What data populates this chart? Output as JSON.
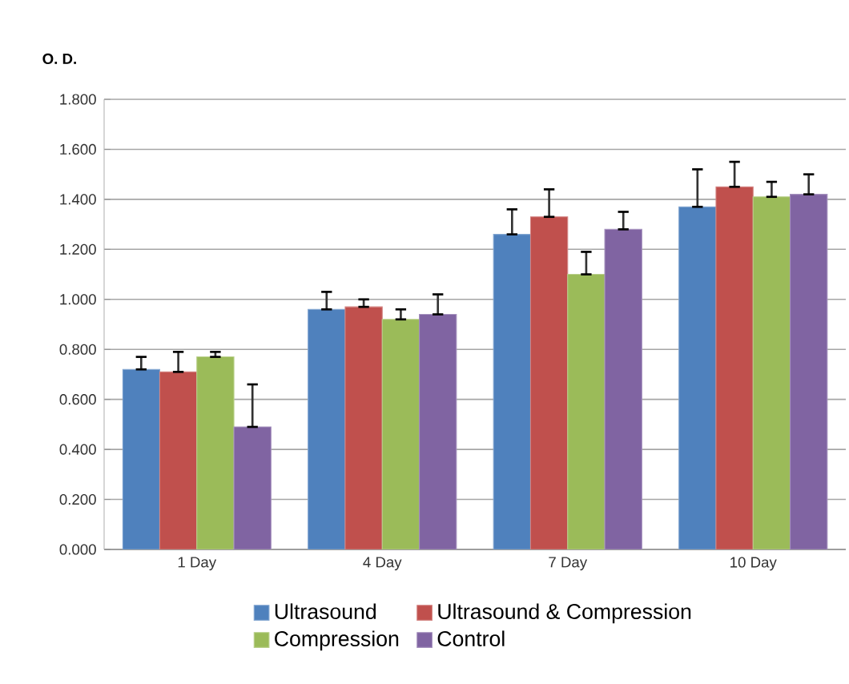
{
  "chart_data": {
    "type": "bar",
    "ylabel": "O. D.",
    "categories": [
      "1 Day",
      "4 Day",
      "7 Day",
      "10 Day"
    ],
    "series": [
      {
        "name": "Ultrasound",
        "color": "#4f81bd",
        "values": [
          0.72,
          0.96,
          1.26,
          1.37
        ],
        "errors": [
          [
            0.72,
            0.77
          ],
          [
            0.96,
            1.03
          ],
          [
            1.26,
            1.36
          ],
          [
            1.37,
            1.52
          ]
        ]
      },
      {
        "name": "Ultrasound & Compression",
        "color": "#c0504d",
        "values": [
          0.71,
          0.97,
          1.33,
          1.45
        ],
        "errors": [
          [
            0.71,
            0.79
          ],
          [
            0.97,
            1.0
          ],
          [
            1.33,
            1.44
          ],
          [
            1.45,
            1.55
          ]
        ]
      },
      {
        "name": "Compression",
        "color": "#9bbb59",
        "values": [
          0.77,
          0.92,
          1.1,
          1.41
        ],
        "errors": [
          [
            0.77,
            0.79
          ],
          [
            0.92,
            0.96
          ],
          [
            1.1,
            1.19
          ],
          [
            1.41,
            1.47
          ]
        ]
      },
      {
        "name": "Control",
        "color": "#8064a2",
        "values": [
          0.49,
          0.94,
          1.28,
          1.42
        ],
        "errors": [
          [
            0.49,
            0.66
          ],
          [
            0.94,
            1.02
          ],
          [
            1.28,
            1.35
          ],
          [
            1.42,
            1.5
          ]
        ]
      }
    ],
    "ylim": [
      0,
      1.8
    ],
    "yticks": [
      {
        "value": 0,
        "label": "0.000"
      },
      {
        "value": 0.2,
        "label": "0.200"
      },
      {
        "value": 0.4,
        "label": "0.400"
      },
      {
        "value": 0.6,
        "label": "0.600"
      },
      {
        "value": 0.8,
        "label": "0.800"
      },
      {
        "value": 1.0,
        "label": "1.000"
      },
      {
        "value": 1.2,
        "label": "1.200"
      },
      {
        "value": 1.4,
        "label": "1.400"
      },
      {
        "value": 1.6,
        "label": "1.600"
      },
      {
        "value": 1.8,
        "label": "1.800"
      }
    ],
    "grid": "y",
    "legend": "bottom"
  }
}
